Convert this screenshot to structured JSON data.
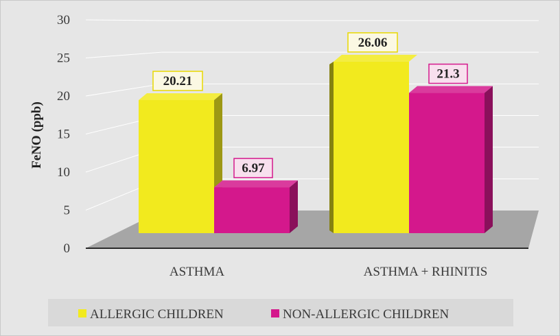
{
  "chart_data": {
    "type": "bar",
    "categories": [
      "ASTHMA",
      "ASTHMA + RHINITIS"
    ],
    "series": [
      {
        "name": "ALLERGIC CHILDREN",
        "values": [
          20.21,
          26.06
        ],
        "labels": [
          "20.21",
          "26.06"
        ],
        "color": "#f2ea1e"
      },
      {
        "name": "NON-ALLERGIC CHILDREN",
        "values": [
          6.97,
          21.3
        ],
        "labels": [
          "6.97",
          "21.3"
        ],
        "color": "#d4188c"
      }
    ],
    "title": "",
    "xlabel": "",
    "ylabel": "FeNO (ppb)",
    "ylim": [
      0,
      30
    ],
    "yticks": [
      "0",
      "5",
      "10",
      "15",
      "20",
      "25",
      "30"
    ],
    "grid": true,
    "style": "3d",
    "legend_position": "bottom",
    "colors": {
      "background": "#e6e6e6",
      "floor": "#a6a6a6",
      "allergic_label_border": "#e8d800",
      "non_allergic_label_border": "#d4188c",
      "label_fill": "#fbf8e3",
      "non_allergic_label_fill": "#f8e0ee"
    }
  }
}
